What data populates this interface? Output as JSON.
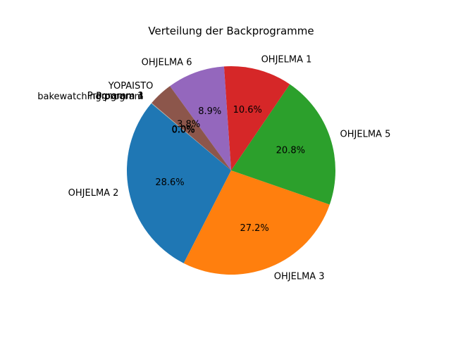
{
  "chart_data": {
    "type": "pie",
    "title": "Verteilung der Backprogramme",
    "start_angle_deg": 140,
    "direction": "counterclockwise",
    "slices": [
      {
        "label": "OHJELMA 2",
        "value": 28.6,
        "pct_text": "28.6%",
        "color": "#1f77b4"
      },
      {
        "label": "OHJELMA 3",
        "value": 27.2,
        "pct_text": "27.2%",
        "color": "#ff7f0e"
      },
      {
        "label": "OHJELMA 5",
        "value": 20.8,
        "pct_text": "20.8%",
        "color": "#2ca02c"
      },
      {
        "label": "OHJELMA 1",
        "value": 10.6,
        "pct_text": "10.6%",
        "color": "#d62728"
      },
      {
        "label": "OHJELMA 6",
        "value": 8.9,
        "pct_text": "8.9%",
        "color": "#9467bd"
      },
      {
        "label": "YOPAISTO",
        "value": 3.8,
        "pct_text": "3.8%",
        "color": "#8c564b"
      },
      {
        "label": "Programm 1",
        "value": 0.03,
        "pct_text": "0.0%",
        "color": "#e377c2"
      },
      {
        "label": "Program 4",
        "value": 0.03,
        "pct_text": "0.0%",
        "color": "#7f7f7f"
      },
      {
        "label": "Program 3",
        "value": 0.02,
        "pct_text": "0.0%",
        "color": "#bcbd22"
      },
      {
        "label": "bakewatching program",
        "value": 0.02,
        "pct_text": "0.0%",
        "color": "#17becf"
      }
    ]
  }
}
